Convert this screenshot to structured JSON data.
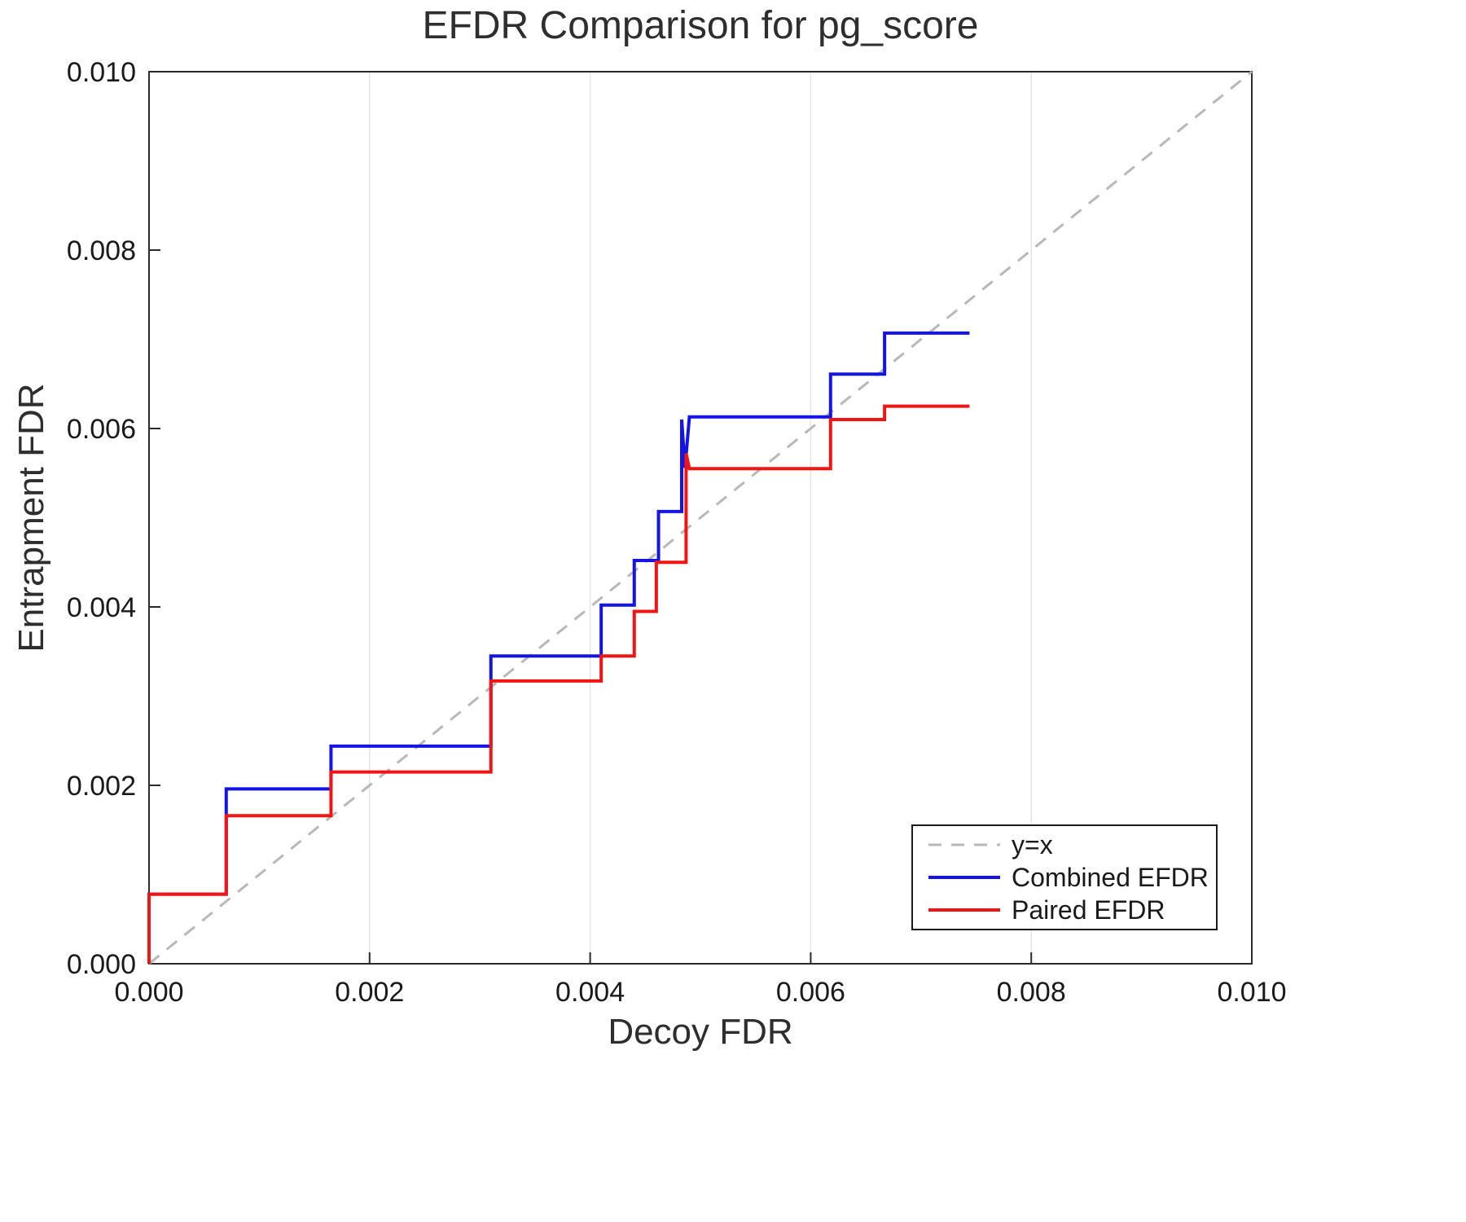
{
  "chart_data": {
    "type": "line",
    "title": "EFDR Comparison for pg_score",
    "xlabel": "Decoy FDR",
    "ylabel": "Entrapment FDR",
    "xlim": [
      0,
      0.01
    ],
    "ylim": [
      0,
      0.01
    ],
    "xticks": [
      0,
      0.002,
      0.004,
      0.006,
      0.008,
      0.01
    ],
    "yticks": [
      0,
      0.002,
      0.004,
      0.006,
      0.008,
      0.01
    ],
    "tick_decimals": 3,
    "grid": "vertical",
    "grid_color": "#e6e6e6",
    "frame_color": "#2b2b2b",
    "legend_position": "bottom-right",
    "series": [
      {
        "name": "y=x",
        "color": "#b8b8b8",
        "style": "dashed",
        "width": 3,
        "points": [
          [
            0,
            0
          ],
          [
            0.01,
            0.01
          ]
        ]
      },
      {
        "name": "Combined EFDR",
        "color": "#1414e6",
        "style": "solid",
        "width": 4,
        "points": [
          [
            0,
            0
          ],
          [
            0,
            0.00078
          ],
          [
            0.0007,
            0.00078
          ],
          [
            0.0007,
            0.00196
          ],
          [
            0.00165,
            0.00196
          ],
          [
            0.00165,
            0.00244
          ],
          [
            0.0031,
            0.00244
          ],
          [
            0.0031,
            0.00345
          ],
          [
            0.0041,
            0.00345
          ],
          [
            0.0041,
            0.00402
          ],
          [
            0.0044,
            0.00402
          ],
          [
            0.0044,
            0.00452
          ],
          [
            0.00462,
            0.00452
          ],
          [
            0.00462,
            0.00507
          ],
          [
            0.00483,
            0.00507
          ],
          [
            0.00483,
            0.0061
          ],
          [
            0.00486,
            0.00556
          ],
          [
            0.0049,
            0.00613
          ],
          [
            0.00618,
            0.00613
          ],
          [
            0.00618,
            0.00661
          ],
          [
            0.00667,
            0.00661
          ],
          [
            0.00667,
            0.00707
          ],
          [
            0.00744,
            0.00707
          ]
        ]
      },
      {
        "name": "Paired EFDR",
        "color": "#f01414",
        "style": "solid",
        "width": 4,
        "points": [
          [
            0,
            0
          ],
          [
            0,
            0.00078
          ],
          [
            0.0007,
            0.00078
          ],
          [
            0.0007,
            0.00166
          ],
          [
            0.00165,
            0.00166
          ],
          [
            0.00165,
            0.00215
          ],
          [
            0.0031,
            0.00215
          ],
          [
            0.0031,
            0.00317
          ],
          [
            0.0041,
            0.00317
          ],
          [
            0.0041,
            0.00345
          ],
          [
            0.0044,
            0.00345
          ],
          [
            0.0044,
            0.00395
          ],
          [
            0.0046,
            0.00395
          ],
          [
            0.0046,
            0.0045
          ],
          [
            0.00487,
            0.0045
          ],
          [
            0.00487,
            0.00572
          ],
          [
            0.0049,
            0.00555
          ],
          [
            0.00618,
            0.00555
          ],
          [
            0.00618,
            0.0061
          ],
          [
            0.00667,
            0.0061
          ],
          [
            0.00667,
            0.00625
          ],
          [
            0.00744,
            0.00625
          ]
        ]
      }
    ]
  }
}
